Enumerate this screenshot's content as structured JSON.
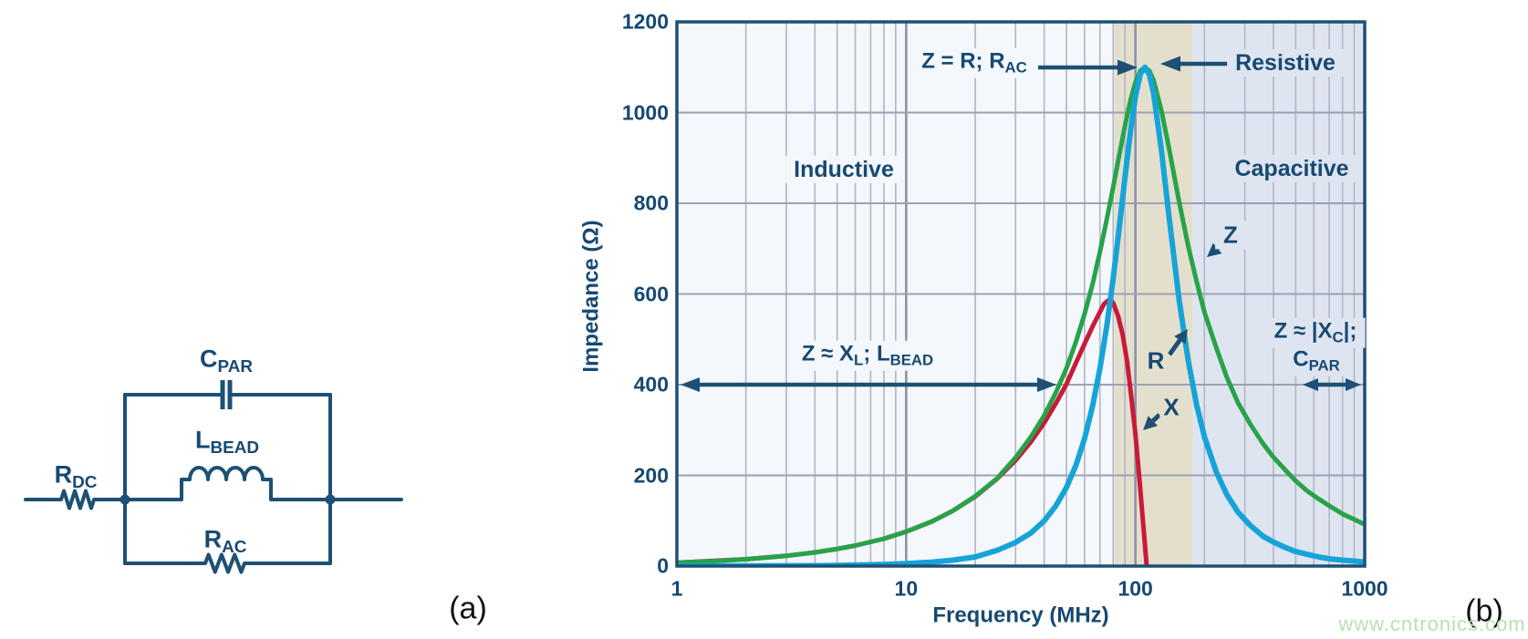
{
  "accent_navy": "#174972",
  "border_navy": "#1d5074",
  "watermark": "www.cntronics.com",
  "panel_a": {
    "caption": "(a)",
    "labels": {
      "r_dc": {
        "main": "R",
        "sub": "DC"
      },
      "c_par": {
        "main": "C",
        "sub": "PAR"
      },
      "l_bead": {
        "main": "L",
        "sub": "BEAD"
      },
      "r_ac": {
        "main": "R",
        "sub": "AC"
      }
    }
  },
  "panel_b": {
    "caption": "(b)"
  },
  "chart_data": {
    "type": "line",
    "x_axis": {
      "label": "Frequency (MHz)",
      "scale": "log",
      "min": 1,
      "max": 1000,
      "ticks": [
        1,
        10,
        100,
        1000
      ]
    },
    "y_axis": {
      "label": "Impedance (Ω)",
      "min": 0,
      "max": 1200,
      "ticks": [
        0,
        200,
        400,
        600,
        800,
        1000,
        1200
      ]
    },
    "grid": "on",
    "regions": [
      {
        "label": "Inductive",
        "f_start": 1,
        "f_end": 81,
        "color": "#f4f8fc"
      },
      {
        "label": "Resistive",
        "f_start": 81,
        "f_end": 178,
        "color": "#e4dfcd"
      },
      {
        "label": "Capacitive",
        "f_start": 178,
        "f_end": 1000,
        "color": "#dfe5f0"
      }
    ],
    "series": [
      {
        "name": "Z",
        "color": "#27a348",
        "width": 5,
        "points": [
          [
            1,
            7.5
          ],
          [
            1.5,
            11.3
          ],
          [
            2,
            15.1
          ],
          [
            3,
            22.6
          ],
          [
            4,
            30.2
          ],
          [
            5,
            37.7
          ],
          [
            6,
            45.3
          ],
          [
            8,
            60.4
          ],
          [
            10,
            75.9
          ],
          [
            13,
            98.8
          ],
          [
            16,
            122
          ],
          [
            20,
            154
          ],
          [
            25,
            194
          ],
          [
            30,
            239
          ],
          [
            35,
            285
          ],
          [
            40,
            332
          ],
          [
            45,
            383
          ],
          [
            50,
            436
          ],
          [
            55,
            494
          ],
          [
            60,
            556
          ],
          [
            65,
            621
          ],
          [
            70,
            692
          ],
          [
            75,
            765
          ],
          [
            80,
            836
          ],
          [
            85,
            906
          ],
          [
            90,
            971
          ],
          [
            95,
            1026
          ],
          [
            100,
            1067
          ],
          [
            105,
            1092
          ],
          [
            110,
            1100
          ],
          [
            115,
            1092
          ],
          [
            120,
            1071
          ],
          [
            130,
            1003
          ],
          [
            140,
            922
          ],
          [
            155,
            804
          ],
          [
            170,
            705
          ],
          [
            185,
            627
          ],
          [
            200,
            560
          ],
          [
            225,
            482
          ],
          [
            250,
            417
          ],
          [
            280,
            360
          ],
          [
            316,
            314
          ],
          [
            360,
            270
          ],
          [
            400,
            240
          ],
          [
            450,
            212
          ],
          [
            500,
            188
          ],
          [
            560,
            166
          ],
          [
            630,
            148
          ],
          [
            700,
            133
          ],
          [
            800,
            115
          ],
          [
            900,
            103
          ],
          [
            1000,
            92
          ]
        ]
      },
      {
        "name": "R",
        "color": "#16a4d8",
        "width": 6,
        "points": [
          [
            1,
            0.4
          ],
          [
            2,
            0.5
          ],
          [
            3,
            0.8
          ],
          [
            4,
            1.1
          ],
          [
            5,
            1.6
          ],
          [
            6,
            2.2
          ],
          [
            8,
            3.6
          ],
          [
            10,
            5.5
          ],
          [
            13,
            8.9
          ],
          [
            16,
            13
          ],
          [
            20,
            20
          ],
          [
            25,
            35
          ],
          [
            30,
            52
          ],
          [
            35,
            73
          ],
          [
            40,
            100
          ],
          [
            45,
            133
          ],
          [
            50,
            173
          ],
          [
            55,
            222
          ],
          [
            60,
            281
          ],
          [
            65,
            352
          ],
          [
            70,
            435
          ],
          [
            75,
            530
          ],
          [
            80,
            635
          ],
          [
            85,
            746
          ],
          [
            90,
            857
          ],
          [
            95,
            957
          ],
          [
            100,
            1036
          ],
          [
            105,
            1085
          ],
          [
            110,
            1100
          ],
          [
            115,
            1084
          ],
          [
            120,
            1042
          ],
          [
            130,
            915
          ],
          [
            140,
            772
          ],
          [
            155,
            588
          ],
          [
            170,
            452
          ],
          [
            185,
            355
          ],
          [
            200,
            285
          ],
          [
            225,
            208
          ],
          [
            250,
            158
          ],
          [
            280,
            119
          ],
          [
            316,
            90
          ],
          [
            360,
            66
          ],
          [
            400,
            53
          ],
          [
            450,
            41
          ],
          [
            500,
            32
          ],
          [
            560,
            26
          ],
          [
            630,
            20
          ],
          [
            700,
            16
          ],
          [
            800,
            13
          ],
          [
            900,
            11
          ],
          [
            1000,
            9
          ]
        ]
      },
      {
        "name": "X",
        "color": "#c81a39",
        "width": 5,
        "points": [
          [
            1,
            7.5
          ],
          [
            2,
            15.1
          ],
          [
            3,
            22.6
          ],
          [
            4,
            30.2
          ],
          [
            5,
            37.7
          ],
          [
            6,
            45.2
          ],
          [
            8,
            60.3
          ],
          [
            10,
            75.7
          ],
          [
            13,
            98.6
          ],
          [
            16,
            122
          ],
          [
            20,
            153
          ],
          [
            25,
            193
          ],
          [
            30,
            233
          ],
          [
            35,
            274
          ],
          [
            40,
            316
          ],
          [
            45,
            359
          ],
          [
            50,
            401
          ],
          [
            55,
            448
          ],
          [
            60,
            490
          ],
          [
            65,
            528
          ],
          [
            70,
            560
          ],
          [
            73,
            578
          ],
          [
            77,
            588
          ],
          [
            80,
            580
          ],
          [
            84,
            552
          ],
          [
            88,
            510
          ],
          [
            92,
            450
          ],
          [
            96,
            372
          ],
          [
            100,
            290
          ],
          [
            104,
            195
          ],
          [
            108,
            95
          ],
          [
            112,
            0
          ],
          [
            114,
            -60
          ],
          [
            116,
            -160
          ]
        ]
      }
    ],
    "annotations": {
      "peak": {
        "t1": "Z = R; R",
        "s1": "AC"
      },
      "ind_formula": {
        "t1": "Z ≈ X",
        "s1": "L",
        "t2": "; L",
        "s2": "BEAD"
      },
      "cap_formula": {
        "t1": "Z ≈ |X",
        "s1": "C",
        "t2": "|;",
        "t3": "C",
        "s3": "PAR"
      }
    }
  }
}
